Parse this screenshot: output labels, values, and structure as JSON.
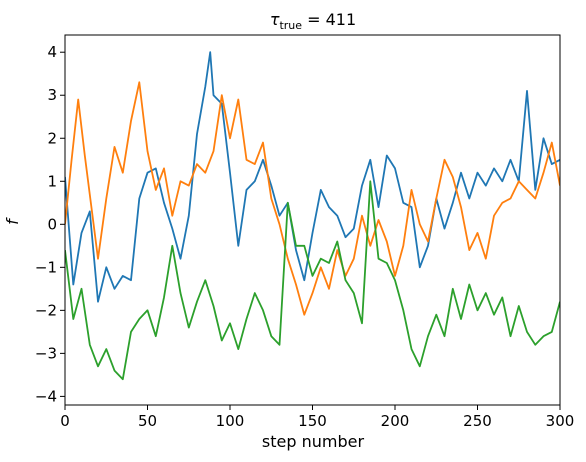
{
  "chart_data": {
    "type": "line",
    "title": {
      "symbol": "τ",
      "subscript": "true",
      "rest": " = 411"
    },
    "xlabel": "step number",
    "ylabel": "f",
    "xlim": [
      0,
      300
    ],
    "ylim": [
      -4.2,
      4.4
    ],
    "xticks": [
      0,
      50,
      100,
      150,
      200,
      250,
      300
    ],
    "yticks": [
      -4,
      -3,
      -2,
      -1,
      0,
      1,
      2,
      3,
      4
    ],
    "grid": false,
    "legend": "none",
    "series": [
      {
        "color": "#1f77b4",
        "x": [
          0,
          5,
          10,
          15,
          20,
          25,
          30,
          35,
          40,
          45,
          50,
          55,
          60,
          65,
          70,
          75,
          80,
          85,
          88,
          90,
          95,
          100,
          105,
          110,
          115,
          120,
          125,
          130,
          135,
          140,
          145,
          150,
          155,
          160,
          165,
          170,
          175,
          180,
          185,
          190,
          195,
          200,
          205,
          210,
          215,
          220,
          225,
          230,
          235,
          240,
          245,
          250,
          255,
          260,
          265,
          270,
          275,
          280,
          285,
          290,
          295,
          300
        ],
        "y": [
          1.1,
          -1.4,
          -0.2,
          0.3,
          -1.8,
          -1.0,
          -1.5,
          -1.2,
          -1.3,
          0.6,
          1.2,
          1.3,
          0.5,
          -0.1,
          -0.8,
          0.2,
          2.1,
          3.2,
          4.0,
          3.0,
          2.8,
          1.2,
          -0.5,
          0.8,
          1.0,
          1.5,
          0.9,
          0.2,
          0.5,
          -0.6,
          -1.3,
          -0.2,
          0.8,
          0.4,
          0.2,
          -0.3,
          -0.1,
          0.9,
          1.5,
          0.4,
          1.6,
          1.3,
          0.5,
          0.4,
          -1.0,
          -0.5,
          0.6,
          -0.1,
          0.5,
          1.2,
          0.6,
          1.2,
          0.9,
          1.3,
          1.0,
          1.5,
          1.0,
          3.1,
          0.8,
          2.0,
          1.4,
          1.5
        ]
      },
      {
        "color": "#ff7f0e",
        "x": [
          0,
          4,
          8,
          12,
          16,
          20,
          25,
          30,
          35,
          40,
          45,
          50,
          55,
          60,
          65,
          70,
          75,
          80,
          85,
          90,
          95,
          100,
          105,
          110,
          115,
          120,
          125,
          130,
          135,
          140,
          145,
          150,
          155,
          160,
          165,
          170,
          175,
          180,
          185,
          190,
          195,
          200,
          205,
          210,
          215,
          220,
          225,
          230,
          235,
          240,
          245,
          250,
          255,
          260,
          265,
          270,
          275,
          280,
          285,
          290,
          295,
          300
        ],
        "y": [
          0.0,
          1.5,
          2.9,
          1.6,
          0.4,
          -0.8,
          0.6,
          1.8,
          1.2,
          2.4,
          3.3,
          1.7,
          0.8,
          1.3,
          0.2,
          1.0,
          0.9,
          1.4,
          1.2,
          1.7,
          3.0,
          2.0,
          2.9,
          1.5,
          1.4,
          1.9,
          0.6,
          0.0,
          -0.8,
          -1.4,
          -2.1,
          -1.6,
          -1.0,
          -1.5,
          -0.6,
          -1.2,
          -0.8,
          0.2,
          -0.5,
          0.1,
          -0.4,
          -1.2,
          -0.5,
          0.8,
          0.0,
          -0.4,
          0.6,
          1.5,
          1.1,
          0.4,
          -0.6,
          -0.2,
          -0.8,
          0.2,
          0.5,
          0.6,
          1.0,
          0.8,
          0.6,
          1.2,
          1.9,
          0.9
        ]
      },
      {
        "color": "#2ca02c",
        "x": [
          0,
          5,
          10,
          15,
          20,
          25,
          30,
          35,
          40,
          45,
          50,
          55,
          60,
          65,
          70,
          75,
          80,
          85,
          90,
          95,
          100,
          105,
          110,
          115,
          120,
          125,
          130,
          135,
          140,
          145,
          150,
          155,
          160,
          165,
          170,
          175,
          180,
          185,
          190,
          195,
          200,
          205,
          210,
          215,
          220,
          225,
          230,
          235,
          240,
          245,
          250,
          255,
          260,
          265,
          270,
          275,
          280,
          285,
          290,
          295,
          300
        ],
        "y": [
          -0.6,
          -2.2,
          -1.5,
          -2.8,
          -3.3,
          -2.9,
          -3.4,
          -3.6,
          -2.5,
          -2.2,
          -2.0,
          -2.6,
          -1.7,
          -0.5,
          -1.6,
          -2.4,
          -1.8,
          -1.3,
          -1.9,
          -2.7,
          -2.3,
          -2.9,
          -2.2,
          -1.6,
          -2.0,
          -2.6,
          -2.8,
          0.5,
          -0.5,
          -0.5,
          -1.2,
          -0.8,
          -0.9,
          -0.4,
          -1.3,
          -1.6,
          -2.3,
          1.0,
          -0.8,
          -0.9,
          -1.3,
          -2.0,
          -2.9,
          -3.3,
          -2.6,
          -2.1,
          -2.6,
          -1.5,
          -2.2,
          -1.4,
          -2.0,
          -1.6,
          -2.1,
          -1.7,
          -2.6,
          -1.9,
          -2.5,
          -2.8,
          -2.6,
          -2.5,
          -1.8
        ]
      }
    ]
  }
}
